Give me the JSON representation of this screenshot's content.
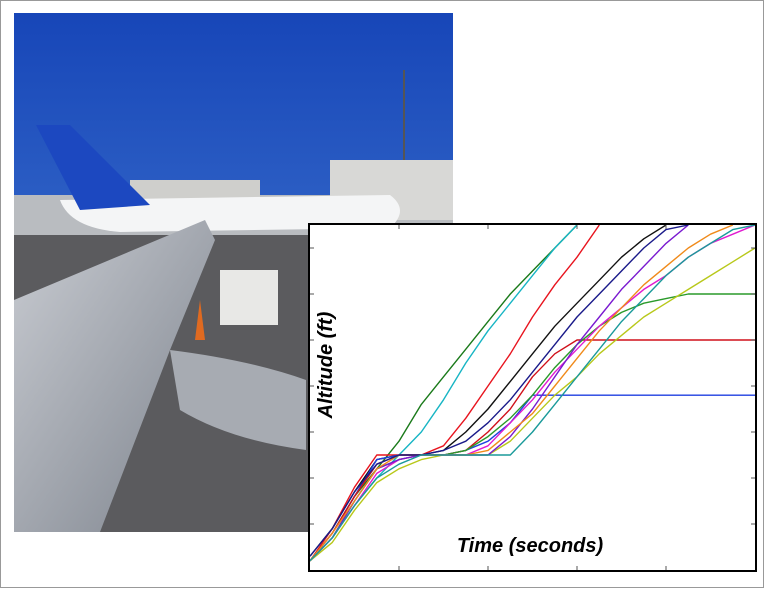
{
  "chart_data": {
    "type": "line",
    "x_label": "Time (seconds)",
    "y_label": "Altitude (ft)",
    "x": [
      0,
      5,
      10,
      15,
      20,
      25,
      30,
      35,
      40,
      45,
      50,
      55,
      60,
      65,
      70,
      75,
      80,
      85,
      90,
      95,
      100
    ],
    "xlim": [
      0,
      100
    ],
    "ylim": [
      0,
      75
    ],
    "xticks": [
      20,
      40,
      60,
      80
    ],
    "yticks": [
      10,
      20,
      30,
      40,
      50,
      60,
      70
    ],
    "series": [
      {
        "color": "#1a7a1a",
        "values": [
          2,
          8,
          16,
          22,
          28,
          36,
          42,
          48,
          54,
          60,
          65,
          70,
          75,
          null,
          null,
          null,
          null,
          null,
          null,
          null,
          null
        ]
      },
      {
        "color": "#17b5c4",
        "values": [
          2,
          7,
          14,
          20,
          25,
          30,
          37,
          45,
          52,
          58,
          64,
          70,
          75,
          null,
          null,
          null,
          null,
          null,
          null,
          null,
          null
        ]
      },
      {
        "color": "#e8141e",
        "values": [
          2,
          9,
          18,
          25,
          25,
          25,
          27,
          33,
          40,
          47,
          55,
          62,
          68,
          75,
          null,
          null,
          null,
          null,
          null,
          null,
          null
        ]
      },
      {
        "color": "#111111",
        "values": [
          3,
          9,
          17,
          24,
          25,
          25,
          26,
          30,
          35,
          41,
          47,
          53,
          58,
          63,
          68,
          72,
          75,
          null,
          null,
          null,
          null
        ]
      },
      {
        "color": "#1f3fe0",
        "values": [
          2,
          8,
          16,
          24,
          25,
          25,
          25,
          26,
          28,
          32,
          38,
          38,
          38,
          38,
          38,
          38,
          38,
          38,
          38,
          38,
          38
        ]
      },
      {
        "color": "#d0101a",
        "values": [
          2,
          8,
          16,
          23,
          25,
          25,
          25,
          26,
          30,
          35,
          42,
          47,
          50,
          50,
          50,
          50,
          50,
          50,
          50,
          50,
          50
        ]
      },
      {
        "color": "#2a9a2a",
        "values": [
          2,
          7,
          15,
          22,
          24,
          25,
          25,
          26,
          29,
          33,
          38,
          44,
          49,
          53,
          56,
          58,
          59,
          60,
          60,
          60,
          60
        ]
      },
      {
        "color": "#e01ad0",
        "values": [
          2,
          7,
          14,
          21,
          24,
          25,
          25,
          25,
          27,
          32,
          37,
          43,
          48,
          53,
          57,
          61,
          64,
          68,
          71,
          73,
          75
        ]
      },
      {
        "color": "#b8c81a",
        "values": [
          2,
          6,
          13,
          19,
          22,
          24,
          25,
          25,
          25,
          28,
          33,
          38,
          42,
          47,
          51,
          55,
          58,
          61,
          64,
          67,
          70
        ]
      },
      {
        "color": "#7a1ad0",
        "values": [
          2,
          7,
          15,
          22,
          24,
          25,
          25,
          25,
          25,
          29,
          35,
          42,
          49,
          55,
          61,
          66,
          71,
          75,
          null,
          null,
          null
        ]
      },
      {
        "color": "#f08a1a",
        "values": [
          2,
          8,
          15,
          22,
          25,
          25,
          25,
          25,
          26,
          30,
          34,
          40,
          46,
          52,
          57,
          62,
          66,
          70,
          73,
          75,
          null
        ]
      },
      {
        "color": "#1a1a8a",
        "values": [
          3,
          9,
          17,
          23,
          25,
          25,
          26,
          28,
          32,
          37,
          43,
          49,
          55,
          60,
          65,
          70,
          74,
          75,
          null,
          null,
          null
        ]
      },
      {
        "color": "#1a9a9a",
        "values": [
          2,
          7,
          14,
          20,
          23,
          25,
          25,
          25,
          25,
          25,
          30,
          36,
          42,
          48,
          54,
          59,
          64,
          68,
          71,
          74,
          75
        ]
      }
    ]
  }
}
